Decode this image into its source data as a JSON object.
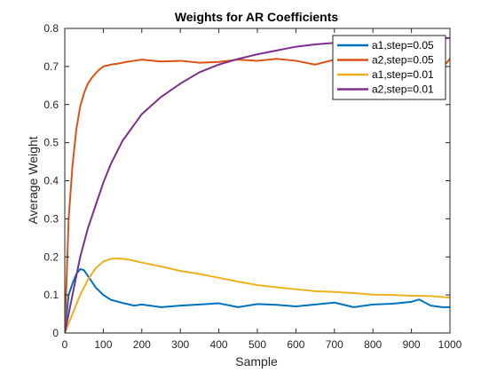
{
  "chart_data": {
    "type": "line",
    "title": "Weights for AR Coefficients",
    "xlabel": "Sample",
    "ylabel": "Average Weight",
    "xlim": [
      0,
      1000
    ],
    "ylim": [
      0,
      0.8
    ],
    "xticks": [
      0,
      100,
      200,
      300,
      400,
      500,
      600,
      700,
      800,
      900,
      1000
    ],
    "yticks": [
      0,
      0.1,
      0.2,
      0.3,
      0.4,
      0.5,
      0.6,
      0.7,
      0.8
    ],
    "xtick_labels": [
      "0",
      "100",
      "200",
      "300",
      "400",
      "500",
      "600",
      "700",
      "800",
      "900",
      "1000"
    ],
    "ytick_labels": [
      "0",
      "0.1",
      "0.2",
      "0.3",
      "0.4",
      "0.5",
      "0.6",
      "0.7",
      "0.8"
    ],
    "grid": false,
    "legend_position": "top-right",
    "series": [
      {
        "name": "a1,step=0.05",
        "color": "#0072BD",
        "x": [
          0,
          10,
          20,
          30,
          40,
          50,
          60,
          70,
          80,
          100,
          120,
          150,
          180,
          200,
          250,
          300,
          350,
          400,
          450,
          500,
          550,
          600,
          650,
          700,
          750,
          800,
          850,
          900,
          920,
          950,
          980,
          1000
        ],
        "y": [
          0,
          0.1,
          0.13,
          0.155,
          0.168,
          0.165,
          0.15,
          0.135,
          0.12,
          0.1,
          0.087,
          0.079,
          0.072,
          0.075,
          0.068,
          0.072,
          0.075,
          0.078,
          0.068,
          0.076,
          0.074,
          0.07,
          0.075,
          0.08,
          0.068,
          0.075,
          0.077,
          0.082,
          0.088,
          0.072,
          0.068,
          0.068
        ]
      },
      {
        "name": "a2,step=0.05",
        "color": "#D95319",
        "x": [
          0,
          10,
          20,
          30,
          40,
          50,
          60,
          70,
          80,
          90,
          100,
          120,
          140,
          160,
          180,
          200,
          250,
          300,
          350,
          400,
          450,
          500,
          550,
          600,
          650,
          700,
          750,
          800,
          850,
          900,
          950,
          990,
          1000
        ],
        "y": [
          0,
          0.3,
          0.44,
          0.535,
          0.595,
          0.63,
          0.655,
          0.67,
          0.682,
          0.692,
          0.7,
          0.705,
          0.708,
          0.712,
          0.715,
          0.718,
          0.713,
          0.715,
          0.71,
          0.712,
          0.718,
          0.715,
          0.72,
          0.715,
          0.705,
          0.718,
          0.72,
          0.712,
          0.715,
          0.725,
          0.72,
          0.708,
          0.72
        ]
      },
      {
        "name": "a1,step=0.01",
        "color": "#EDB120",
        "x": [
          0,
          10,
          20,
          40,
          60,
          80,
          100,
          120,
          140,
          160,
          180,
          200,
          250,
          300,
          350,
          400,
          450,
          500,
          550,
          600,
          650,
          700,
          750,
          800,
          850,
          900,
          950,
          1000
        ],
        "y": [
          0,
          0.025,
          0.05,
          0.1,
          0.14,
          0.17,
          0.188,
          0.195,
          0.196,
          0.194,
          0.19,
          0.185,
          0.175,
          0.163,
          0.155,
          0.145,
          0.135,
          0.126,
          0.12,
          0.115,
          0.11,
          0.108,
          0.105,
          0.101,
          0.1,
          0.098,
          0.097,
          0.093
        ]
      },
      {
        "name": "a2,step=0.01",
        "color": "#7E2F8E",
        "x": [
          0,
          20,
          40,
          60,
          80,
          100,
          120,
          150,
          200,
          250,
          300,
          350,
          400,
          450,
          500,
          550,
          600,
          650,
          700,
          750,
          800,
          850,
          900,
          950,
          1000
        ],
        "y": [
          0,
          0.1,
          0.2,
          0.275,
          0.335,
          0.395,
          0.445,
          0.505,
          0.575,
          0.62,
          0.655,
          0.685,
          0.705,
          0.72,
          0.732,
          0.742,
          0.752,
          0.758,
          0.762,
          0.765,
          0.768,
          0.77,
          0.772,
          0.773,
          0.775
        ]
      }
    ]
  }
}
